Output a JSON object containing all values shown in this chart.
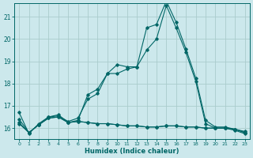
{
  "xlabel": "Humidex (Indice chaleur)",
  "background_color": "#cce8ec",
  "line_color": "#006666",
  "grid_color": "#aacccc",
  "x": [
    0,
    1,
    2,
    3,
    4,
    5,
    6,
    7,
    8,
    9,
    10,
    11,
    12,
    13,
    14,
    15,
    16,
    17,
    18,
    19,
    20,
    21,
    22,
    23
  ],
  "series": [
    [
      16.7,
      15.75,
      16.2,
      16.5,
      16.6,
      16.25,
      16.35,
      17.5,
      17.75,
      18.45,
      18.85,
      18.75,
      18.75,
      19.5,
      20.0,
      21.5,
      20.5,
      19.4,
      18.1,
      16.2,
      16.0,
      16.0,
      15.9,
      15.75
    ],
    [
      16.4,
      15.8,
      16.15,
      16.5,
      16.55,
      16.3,
      16.45,
      17.3,
      17.55,
      18.45,
      18.45,
      18.65,
      18.75,
      20.5,
      20.65,
      21.7,
      20.75,
      19.55,
      18.25,
      16.35,
      16.05,
      16.05,
      15.95,
      15.85
    ],
    [
      16.25,
      15.8,
      16.15,
      16.45,
      16.5,
      16.25,
      16.3,
      16.25,
      16.2,
      16.2,
      16.15,
      16.1,
      16.1,
      16.05,
      16.05,
      16.1,
      16.1,
      16.05,
      16.05,
      16.0,
      16.0,
      16.0,
      15.95,
      15.8
    ],
    [
      16.2,
      15.8,
      16.15,
      16.45,
      16.5,
      16.25,
      16.3,
      16.25,
      16.2,
      16.2,
      16.15,
      16.1,
      16.1,
      16.05,
      16.05,
      16.1,
      16.1,
      16.05,
      16.05,
      16.0,
      16.0,
      16.0,
      15.95,
      15.8
    ]
  ],
  "ylim": [
    15.5,
    21.6
  ],
  "yticks": [
    16,
    17,
    18,
    19,
    20,
    21
  ],
  "xlim": [
    -0.5,
    23.5
  ],
  "figsize": [
    3.2,
    2.0
  ],
  "dpi": 100
}
